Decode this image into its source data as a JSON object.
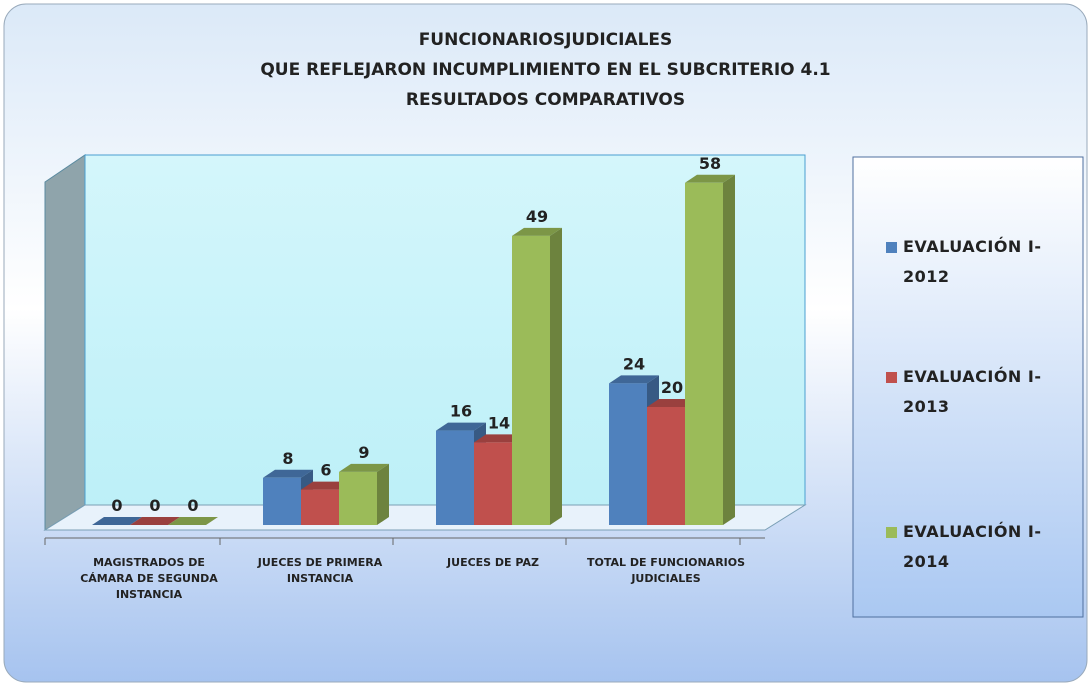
{
  "chart_data": {
    "type": "bar3d",
    "title": [
      "FUNCIONARIOSJUDICIALES",
      "QUE REFLEJARON INCUMPLIMIENTO EN EL SUBCRITERIO  4.1",
      "RESULTADOS COMPARATIVOS"
    ],
    "categories": [
      "MAGISTRADOS DE CÁMARA DE SEGUNDA INSTANCIA",
      "JUECES DE PRIMERA INSTANCIA",
      "JUECES DE PAZ",
      "TOTAL DE FUNCIONARIOS JUDICIALES"
    ],
    "series": [
      {
        "name": "EVALUACIÓN I-2012",
        "color": "#4f81bd",
        "values": [
          0,
          8,
          16,
          24
        ]
      },
      {
        "name": "EVALUACIÓN I-2013",
        "color": "#c0504d",
        "values": [
          0,
          6,
          14,
          20
        ]
      },
      {
        "name": "EVALUACIÓN I-2014",
        "color": "#9bbb59",
        "values": [
          0,
          9,
          49,
          58
        ]
      }
    ],
    "ylim": [
      0,
      60
    ],
    "legend": "right"
  }
}
